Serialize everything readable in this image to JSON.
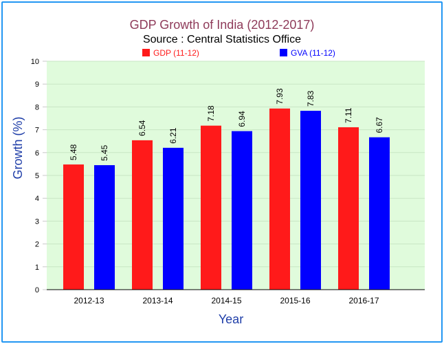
{
  "chart_data": {
    "type": "bar",
    "title": "GDP Growth of India (2012-2017)",
    "subtitle": "Source : Central Statistics Office",
    "xlabel": "Year",
    "ylabel": "Growth (%)",
    "categories": [
      "2012-13",
      "2013-14",
      "2014-15",
      "2015-16",
      "2016-17"
    ],
    "series": [
      {
        "name": "GDP (11-12)",
        "values": [
          5.48,
          6.54,
          7.18,
          7.93,
          7.11
        ],
        "color": "#ff1a1a"
      },
      {
        "name": "GVA (11-12)",
        "values": [
          5.45,
          6.21,
          6.94,
          7.83,
          6.67
        ],
        "color": "#0000ff"
      }
    ],
    "ylim": [
      0,
      10
    ],
    "yticks": [
      0,
      1,
      2,
      3,
      4,
      5,
      6,
      7,
      8,
      9,
      10
    ],
    "grid": true,
    "legend_position": "top",
    "colors": {
      "title": "#8e3a59",
      "axis_title": "#1f3ea8",
      "plot_background": "#e0fbdc",
      "gridline": "#c8e6c4"
    }
  }
}
